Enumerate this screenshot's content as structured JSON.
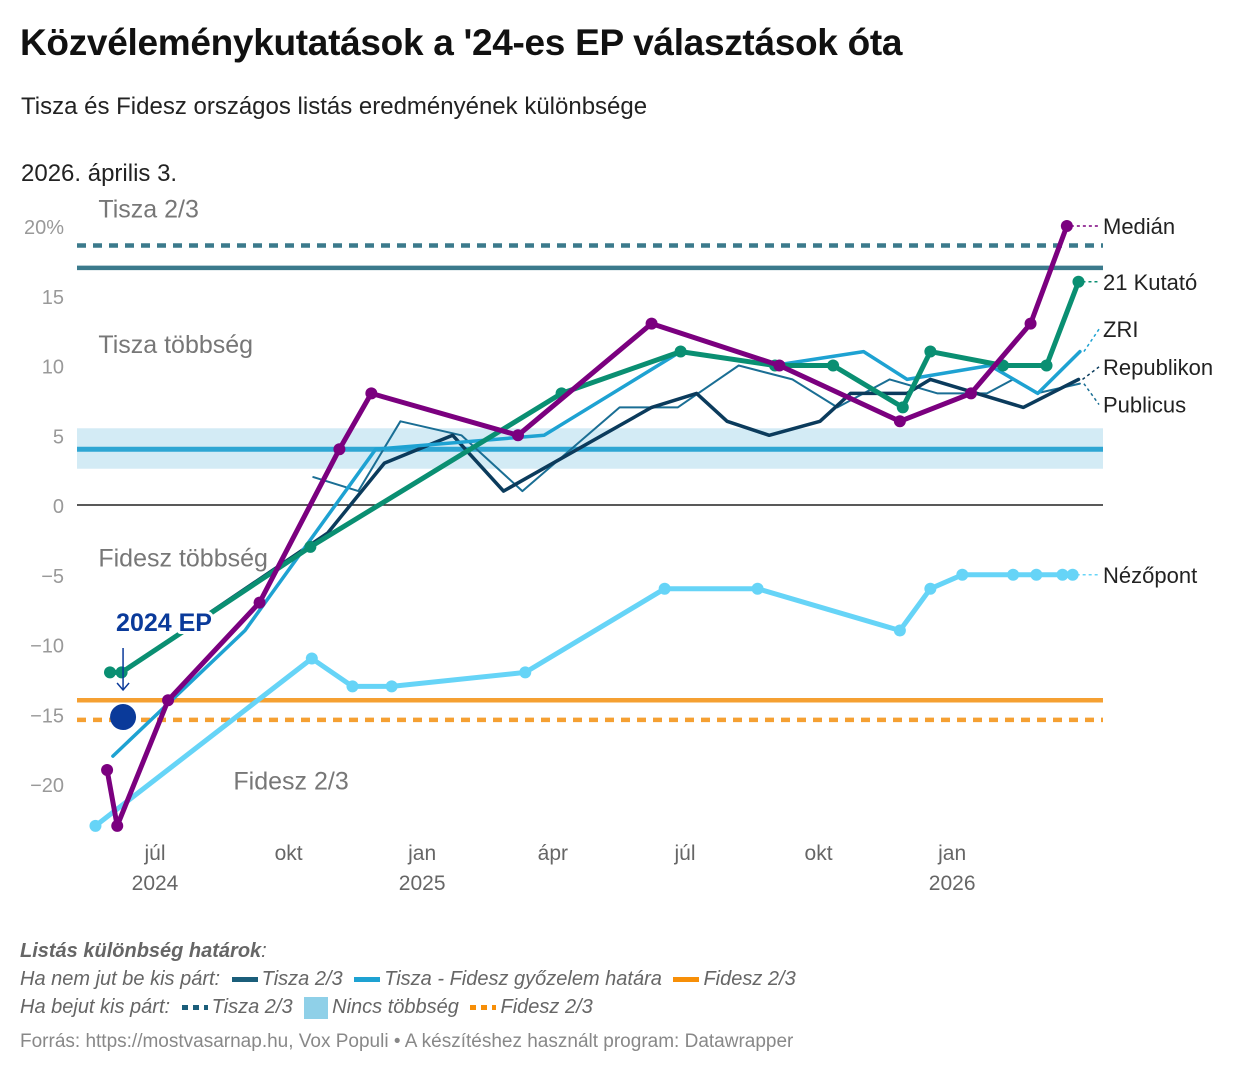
{
  "title": "Közvéleménykutatások a '24-es EP választások óta",
  "subtitle": "Tisza és Fidesz országos listás eredményének különbsége",
  "date_label": "2026. április 3.",
  "colors": {
    "tisza_two_thirds": "#3b7a8c",
    "tisza_fidesz_line": "#2ea6d3",
    "no_majority_band": "#d3ebf5",
    "fidesz_two_thirds": "#f5a032",
    "ep_marker": "#0a3a9a"
  },
  "chart_data": {
    "type": "line",
    "ylabel": "",
    "xlabel": "",
    "ylim": [
      -23,
      20
    ],
    "xlim": [
      "2024-05-15",
      "2026-04-03"
    ],
    "y_ticks": [
      {
        "value": 20,
        "label": "20%"
      },
      {
        "value": 15,
        "label": "15"
      },
      {
        "value": 10,
        "label": "10"
      },
      {
        "value": 5,
        "label": "5"
      },
      {
        "value": 0,
        "label": "0"
      },
      {
        "value": -5,
        "label": "−5"
      },
      {
        "value": -10,
        "label": "−10"
      },
      {
        "value": -15,
        "label": "−15"
      },
      {
        "value": -20,
        "label": "−20"
      }
    ],
    "x_ticks": [
      {
        "date": "2024-07-01",
        "label": "júl",
        "year": "2024"
      },
      {
        "date": "2024-10-01",
        "label": "okt",
        "year": ""
      },
      {
        "date": "2025-01-01",
        "label": "jan",
        "year": "2025"
      },
      {
        "date": "2025-04-01",
        "label": "ápr",
        "year": ""
      },
      {
        "date": "2025-07-01",
        "label": "júl",
        "year": ""
      },
      {
        "date": "2025-10-01",
        "label": "okt",
        "year": ""
      },
      {
        "date": "2026-01-01",
        "label": "jan",
        "year": "2026"
      }
    ],
    "reference_lines": [
      {
        "value": 18.6,
        "style": "dashed",
        "color": "#3b7a8c",
        "key": "tisza_two_thirds_small"
      },
      {
        "value": 17,
        "style": "solid",
        "color": "#3b7a8c",
        "key": "tisza_two_thirds"
      },
      {
        "value": 4,
        "style": "solid",
        "color": "#2ea6d3",
        "key": "tisza_fidesz_line"
      },
      {
        "value": -14,
        "style": "solid",
        "color": "#f5a032",
        "key": "fidesz_two_thirds"
      },
      {
        "value": -15.4,
        "style": "dashed",
        "color": "#f5a032",
        "key": "fidesz_two_thirds_small"
      }
    ],
    "band": {
      "from": 2.6,
      "to": 5.5,
      "color": "#d3ebf5"
    },
    "zones": [
      {
        "label": "Tisza 2/3",
        "value": 20.6,
        "date": "2024-05-23"
      },
      {
        "label": "Tisza többség",
        "value": 10.9,
        "date": "2024-05-23"
      },
      {
        "label": "Fidesz többség",
        "value": -4.4,
        "date": "2024-05-23"
      },
      {
        "label": "Fidesz 2/3",
        "value": -20.4,
        "date": "2024-08-24"
      }
    ],
    "ep_marker": {
      "label": "2024 EP",
      "date": "2024-06-09",
      "value": -15.2
    },
    "series": [
      {
        "name": "Publicus",
        "color": "#1a6e94",
        "width": 2,
        "dots": false,
        "label_value": 7.2,
        "points": [
          [
            "2024-10-18",
            2
          ],
          [
            "2024-11-18",
            1
          ],
          [
            "2024-12-17",
            6
          ],
          [
            "2025-01-28",
            5
          ],
          [
            "2025-03-11",
            1
          ],
          [
            "2025-05-17",
            7
          ],
          [
            "2025-06-26",
            7
          ],
          [
            "2025-08-07",
            10
          ],
          [
            "2025-09-13",
            9
          ],
          [
            "2025-10-14",
            7
          ],
          [
            "2025-11-19",
            9
          ],
          [
            "2025-12-22",
            8
          ],
          [
            "2026-01-25",
            8
          ],
          [
            "2026-02-12",
            9
          ],
          [
            "2026-02-28",
            8
          ],
          [
            "2026-03-30",
            8.7
          ]
        ]
      },
      {
        "name": "Republikon",
        "color": "#0b3b5c",
        "width": 3.5,
        "dots": false,
        "label_value": 9.9,
        "points": [
          [
            "2024-06-08",
            -12
          ],
          [
            "2024-10-28",
            -2
          ],
          [
            "2024-12-06",
            3
          ],
          [
            "2025-01-22",
            5
          ],
          [
            "2025-02-26",
            1
          ],
          [
            "2025-06-08",
            7
          ],
          [
            "2025-07-09",
            8
          ],
          [
            "2025-07-30",
            6
          ],
          [
            "2025-08-28",
            5
          ],
          [
            "2025-10-02",
            6
          ],
          [
            "2025-10-23",
            8
          ],
          [
            "2025-12-01",
            8
          ],
          [
            "2025-12-17",
            9
          ],
          [
            "2026-02-19",
            7
          ],
          [
            "2026-03-29",
            9
          ]
        ]
      },
      {
        "name": "ZRI",
        "color": "#1ea2d2",
        "width": 3.5,
        "dots": false,
        "label_value": 12.6,
        "points": [
          [
            "2024-06-02",
            -18
          ],
          [
            "2024-09-01",
            -9
          ],
          [
            "2024-11-30",
            4
          ],
          [
            "2025-03-26",
            5
          ],
          [
            "2025-06-28",
            11
          ],
          [
            "2025-08-31",
            10
          ],
          [
            "2025-11-01",
            11
          ],
          [
            "2025-12-01",
            9
          ],
          [
            "2026-01-27",
            10
          ],
          [
            "2026-03-01",
            8
          ],
          [
            "2026-03-30",
            11
          ]
        ]
      },
      {
        "name": "Nézőpont",
        "color": "#66d4f7",
        "width": 5,
        "dots": true,
        "label_value": -5,
        "points": [
          [
            "2024-05-21",
            -23
          ],
          [
            "2024-10-17",
            -11
          ],
          [
            "2024-11-14",
            -13
          ],
          [
            "2024-12-11",
            -13
          ],
          [
            "2025-03-13",
            -12
          ],
          [
            "2025-06-17",
            -6
          ],
          [
            "2025-08-20",
            -6
          ],
          [
            "2025-11-26",
            -9
          ],
          [
            "2025-12-17",
            -6
          ],
          [
            "2026-01-08",
            -5
          ],
          [
            "2026-02-12",
            -5
          ],
          [
            "2026-02-28",
            -5
          ],
          [
            "2026-03-18",
            -5
          ],
          [
            "2026-03-25",
            -5
          ]
        ]
      },
      {
        "name": "21 Kutató",
        "color": "#0a8f72",
        "width": 5,
        "dots": true,
        "label_value": 16,
        "points": [
          [
            "2024-05-31",
            -12
          ],
          [
            "2024-06-08",
            -12
          ],
          [
            "2024-10-16",
            -3
          ],
          [
            "2025-04-07",
            8
          ],
          [
            "2025-06-28",
            11
          ],
          [
            "2025-09-01",
            10
          ],
          [
            "2025-10-11",
            10
          ],
          [
            "2025-11-28",
            7
          ],
          [
            "2025-12-17",
            11
          ],
          [
            "2026-02-05",
            10
          ],
          [
            "2026-03-07",
            10
          ],
          [
            "2026-03-29",
            16
          ]
        ]
      },
      {
        "name": "Medián",
        "color": "#7b007f",
        "width": 5,
        "dots": true,
        "label_value": 20,
        "points": [
          [
            "2024-05-29",
            -19
          ],
          [
            "2024-06-05",
            -23
          ],
          [
            "2024-07-10",
            -14
          ],
          [
            "2024-09-11",
            -7
          ],
          [
            "2024-11-05",
            4
          ],
          [
            "2024-11-27",
            8
          ],
          [
            "2025-03-08",
            5
          ],
          [
            "2025-06-08",
            13
          ],
          [
            "2025-09-04",
            10
          ],
          [
            "2025-11-26",
            6
          ],
          [
            "2026-01-14",
            8
          ],
          [
            "2026-02-24",
            13
          ],
          [
            "2026-03-21",
            20
          ]
        ]
      }
    ]
  },
  "legend": {
    "heading": "Listás különbség határok",
    "row1_label": "Ha nem jut be kis párt:",
    "row1_items": [
      "Tisza 2/3",
      "Tisza - Fidesz győzelem határa",
      "Fidesz 2/3"
    ],
    "row2_label": "Ha bejut kis párt:",
    "row2_items": [
      "Tisza 2/3",
      "Nincs többség",
      "Fidesz 2/3"
    ]
  },
  "source": "Forrás: https://mostvasarnap.hu, Vox Populi • A készítéshez használt program: Datawrapper"
}
